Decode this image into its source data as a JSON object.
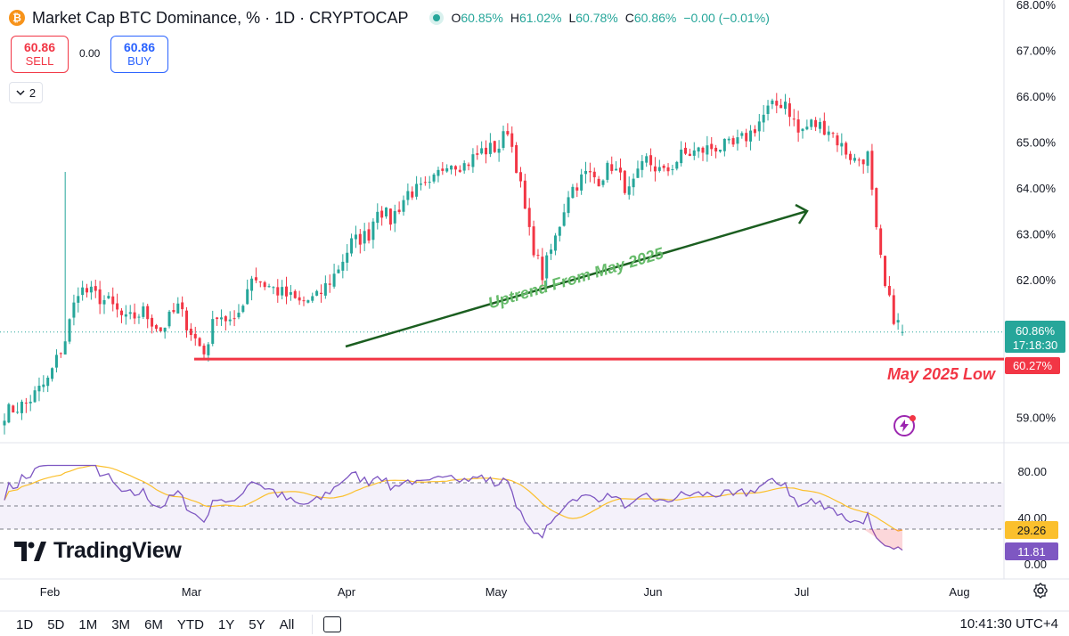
{
  "header": {
    "coin_symbol": "₿",
    "title": "Market Cap BTC Dominance, % · 1D · CRYPTOCAP",
    "ohlc": {
      "o_label": "O",
      "o": "60.85%",
      "h_label": "H",
      "h": "61.02%",
      "l_label": "L",
      "l": "60.78%",
      "c_label": "C",
      "c": "60.86%",
      "change": "−0.00 (−0.01%)"
    }
  },
  "trade": {
    "sell_price": "60.86",
    "sell_label": "SELL",
    "spread": "0.00",
    "buy_price": "60.86",
    "buy_label": "BUY"
  },
  "indicators_toggle": {
    "icon": "chevron-down-icon",
    "count": "2"
  },
  "annotations": {
    "trend_label": "Uptrend From May 2025",
    "low_label": "May 2025 Low"
  },
  "price_axis": {
    "ticks": [
      "68.00%",
      "67.00%",
      "66.00%",
      "65.00%",
      "64.00%",
      "63.00%",
      "62.00%",
      "59.00%"
    ],
    "current_label": "60.86%",
    "countdown": "17:18:30",
    "low_level_label": "60.27%"
  },
  "rsi_axis": {
    "ticks": [
      "80.00",
      "40.00",
      "0.00"
    ],
    "ma_value": "29.26",
    "rsi_value": "11.81"
  },
  "time_axis": [
    "Feb",
    "Mar",
    "Apr",
    "May",
    "Jun",
    "Jul",
    "Aug"
  ],
  "brand": "TradingView",
  "bottom_bar": {
    "timeframes": [
      "1D",
      "5D",
      "1M",
      "3M",
      "6M",
      "YTD",
      "1Y",
      "5Y",
      "All"
    ],
    "clock": "10:41:30 UTC+4"
  },
  "colors": {
    "up": "#26a69a",
    "down": "#f23645",
    "trend_line": "#1b5e20",
    "trend_text": "#66bb6a",
    "low_line": "#f23645",
    "rsi": "#7e57c2",
    "rsi_ma": "#fbc02d",
    "rsi_band": "#ede7f6"
  },
  "chart_data": {
    "type": "candlestick",
    "title": "Market Cap BTC Dominance, %",
    "interval": "1D",
    "y_unit": "%",
    "ylim": [
      58.5,
      68.0
    ],
    "x_months": [
      "Feb",
      "Mar",
      "Apr",
      "May",
      "Jun",
      "Jul",
      "Aug"
    ],
    "anchors": [
      [
        0,
        59.1
      ],
      [
        5,
        59.3
      ],
      [
        10,
        59.8
      ],
      [
        14,
        60.7
      ],
      [
        17,
        61.8
      ],
      [
        20,
        61.7
      ],
      [
        24,
        61.5
      ],
      [
        28,
        61.1
      ],
      [
        32,
        61.3
      ],
      [
        36,
        60.9
      ],
      [
        40,
        61.4
      ],
      [
        44,
        60.7
      ],
      [
        46,
        60.4
      ],
      [
        49,
        61.3
      ],
      [
        53,
        61.0
      ],
      [
        57,
        62.1
      ],
      [
        60,
        61.9
      ],
      [
        64,
        61.7
      ],
      [
        68,
        61.5
      ],
      [
        72,
        61.6
      ],
      [
        76,
        62.1
      ],
      [
        80,
        62.8
      ],
      [
        84,
        63.0
      ],
      [
        86,
        63.6
      ],
      [
        89,
        63.3
      ],
      [
        93,
        63.9
      ],
      [
        98,
        64.0
      ],
      [
        102,
        64.6
      ],
      [
        106,
        64.5
      ],
      [
        110,
        64.8
      ],
      [
        114,
        64.9
      ],
      [
        116,
        65.3
      ],
      [
        118,
        64.5
      ],
      [
        121,
        63.0
      ],
      [
        124,
        62.1
      ],
      [
        127,
        62.9
      ],
      [
        130,
        63.9
      ],
      [
        134,
        64.3
      ],
      [
        137,
        64.2
      ],
      [
        140,
        64.5
      ],
      [
        144,
        63.9
      ],
      [
        148,
        64.6
      ],
      [
        152,
        64.3
      ],
      [
        156,
        64.7
      ],
      [
        160,
        64.8
      ],
      [
        164,
        64.9
      ],
      [
        168,
        64.9
      ],
      [
        172,
        65.2
      ],
      [
        176,
        65.7
      ],
      [
        180,
        65.9
      ],
      [
        183,
        65.2
      ],
      [
        186,
        65.4
      ],
      [
        190,
        65.3
      ],
      [
        193,
        64.9
      ],
      [
        196,
        64.6
      ],
      [
        199,
        64.7
      ],
      [
        201,
        63.0
      ],
      [
        203,
        61.8
      ],
      [
        205,
        61.2
      ],
      [
        207,
        60.86
      ]
    ],
    "last": {
      "open": 60.85,
      "high": 61.02,
      "low": 60.78,
      "close": 60.86
    },
    "levels": [
      {
        "label": "May 2025 Low",
        "value": 60.27
      }
    ],
    "rsi": {
      "period_label": "RSI",
      "ylim": [
        0,
        100
      ],
      "bands": [
        70,
        50,
        30
      ],
      "last": 11.81,
      "ma_last": 29.26
    }
  }
}
